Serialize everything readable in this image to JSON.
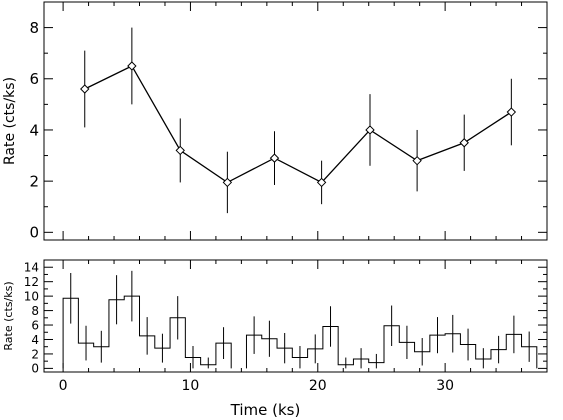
{
  "chart_data": [
    {
      "type": "line",
      "xlabel": "",
      "ylabel": "Rate (cts/ks)",
      "xlim": [
        -1.5,
        38
      ],
      "ylim": [
        -0.3,
        9
      ],
      "xticks": [
        "0",
        "10",
        "20",
        "30"
      ],
      "yticks": [
        "0",
        "2",
        "4",
        "6",
        "8"
      ],
      "marker": "diamond",
      "points": [
        {
          "x": 1.7,
          "y": 5.6,
          "err": 1.5
        },
        {
          "x": 5.4,
          "y": 6.5,
          "err": 1.5
        },
        {
          "x": 9.2,
          "y": 3.2,
          "err": 1.25
        },
        {
          "x": 12.9,
          "y": 1.95,
          "err": 1.2
        },
        {
          "x": 16.6,
          "y": 2.9,
          "err": 1.05
        },
        {
          "x": 20.3,
          "y": 1.95,
          "err": 0.85
        },
        {
          "x": 24.1,
          "y": 4.0,
          "err": 1.4
        },
        {
          "x": 27.8,
          "y": 2.8,
          "err": 1.2
        },
        {
          "x": 31.5,
          "y": 3.5,
          "err": 1.1
        },
        {
          "x": 35.2,
          "y": 4.7,
          "err": 1.3
        }
      ]
    },
    {
      "type": "step",
      "xlabel": "Time (ks)",
      "ylabel": "Rate (cts/ks)",
      "xlim": [
        -1.5,
        38
      ],
      "ylim": [
        -0.5,
        15
      ],
      "xticks": [
        "0",
        "10",
        "20",
        "30"
      ],
      "yticks": [
        "0",
        "2",
        "4",
        "6",
        "8",
        "10",
        "12",
        "14"
      ],
      "bin_width": 1.2,
      "bins": [
        {
          "x": 0.6,
          "y": 9.7,
          "err": 3.5
        },
        {
          "x": 1.8,
          "y": 3.5,
          "err": 2.4
        },
        {
          "x": 3.0,
          "y": 3.0,
          "err": 2.2
        },
        {
          "x": 4.2,
          "y": 9.5,
          "err": 3.4
        },
        {
          "x": 5.4,
          "y": 10.0,
          "err": 3.5
        },
        {
          "x": 6.6,
          "y": 4.5,
          "err": 2.6
        },
        {
          "x": 7.8,
          "y": 2.8,
          "err": 2.0
        },
        {
          "x": 9.0,
          "y": 7.0,
          "err": 3.0
        },
        {
          "x": 10.2,
          "y": 1.5,
          "err": 1.6
        },
        {
          "x": 11.4,
          "y": 0.5,
          "err": 1.0
        },
        {
          "x": 12.6,
          "y": 3.5,
          "err": 2.2
        },
        {
          "x": 15.0,
          "y": 4.6,
          "err": 2.6
        },
        {
          "x": 16.2,
          "y": 4.1,
          "err": 2.5
        },
        {
          "x": 17.4,
          "y": 2.8,
          "err": 2.1
        },
        {
          "x": 18.6,
          "y": 1.5,
          "err": 1.6
        },
        {
          "x": 19.8,
          "y": 2.7,
          "err": 2.0
        },
        {
          "x": 21.0,
          "y": 5.8,
          "err": 2.8
        },
        {
          "x": 22.2,
          "y": 0.5,
          "err": 1.0
        },
        {
          "x": 23.4,
          "y": 1.3,
          "err": 1.5
        },
        {
          "x": 24.6,
          "y": 0.8,
          "err": 1.2
        },
        {
          "x": 25.8,
          "y": 5.9,
          "err": 2.8
        },
        {
          "x": 27.0,
          "y": 3.6,
          "err": 2.3
        },
        {
          "x": 28.2,
          "y": 2.3,
          "err": 1.9
        },
        {
          "x": 29.4,
          "y": 4.6,
          "err": 2.5
        },
        {
          "x": 30.6,
          "y": 4.8,
          "err": 2.6
        },
        {
          "x": 31.8,
          "y": 3.3,
          "err": 2.2
        },
        {
          "x": 33.0,
          "y": 1.3,
          "err": 1.5
        },
        {
          "x": 34.2,
          "y": 2.6,
          "err": 1.9
        },
        {
          "x": 35.4,
          "y": 4.7,
          "err": 2.6
        },
        {
          "x": 36.6,
          "y": 3.0,
          "err": 2.1
        }
      ]
    }
  ]
}
